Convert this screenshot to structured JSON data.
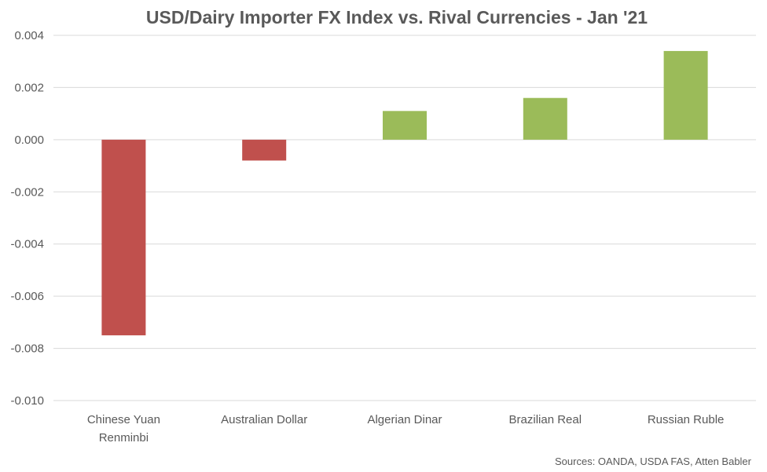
{
  "chart_data": {
    "type": "bar",
    "title": "USD/Dairy Importer FX Index vs. Rival Currencies - Jan '21",
    "categories": [
      [
        "Chinese Yuan",
        "Renminbi"
      ],
      [
        "Australian Dollar"
      ],
      [
        "Algerian Dinar"
      ],
      [
        "Brazilian Real"
      ],
      [
        "Russian Ruble"
      ]
    ],
    "values": [
      -0.0075,
      -0.0008,
      0.0011,
      0.0016,
      0.0034
    ],
    "ylim": [
      -0.01,
      0.004
    ],
    "yticks": [
      "0.004",
      "0.002",
      "0.000",
      "-0.002",
      "-0.004",
      "-0.006",
      "-0.008",
      "-0.010"
    ],
    "ytick_values": [
      0.004,
      0.002,
      0.0,
      -0.002,
      -0.004,
      -0.006,
      -0.008,
      -0.01
    ],
    "grid": true,
    "legend": "none",
    "colors": {
      "negative": "#c0504d",
      "positive": "#9bbb59",
      "grid": "#d9d9d9",
      "text": "#595959"
    },
    "source": "Sources: OANDA, USDA FAS, Atten Babler"
  }
}
